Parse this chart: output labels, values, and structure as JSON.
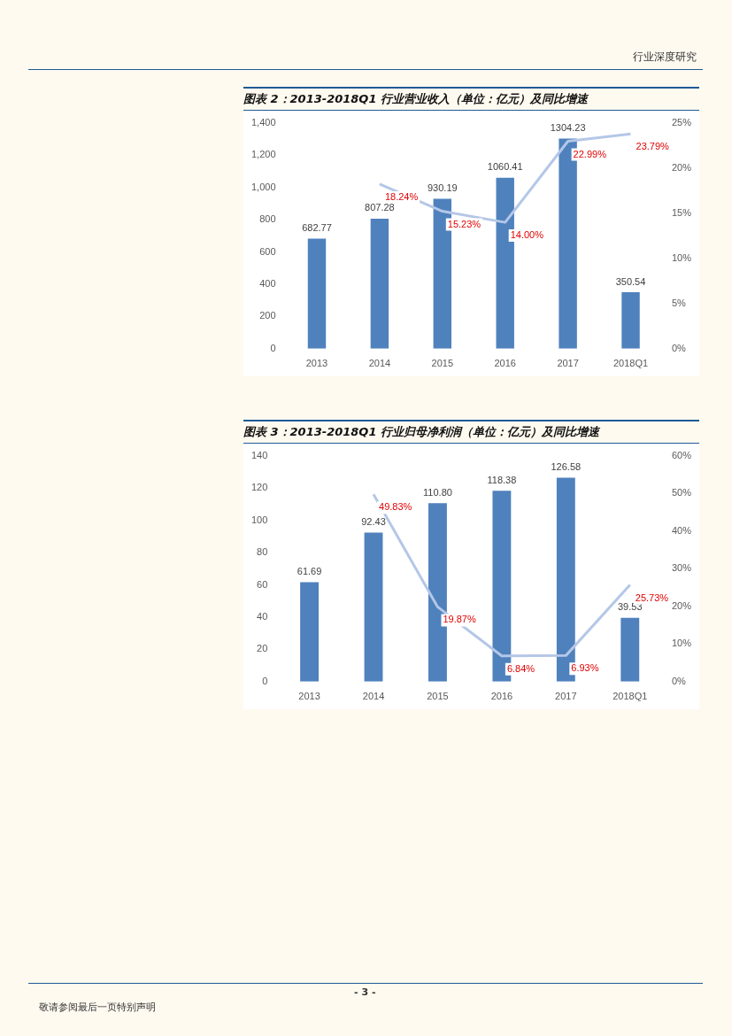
{
  "chart_data": [
    {
      "type": "bar",
      "title": "图表 2：2013-2018Q1 行业营业收入（单位：亿元）及同比增速",
      "annotations": [
        "行业深度研究"
      ],
      "categories": [
        "2013",
        "2014",
        "2015",
        "2016",
        "2017",
        "2018Q1"
      ],
      "series": [
        {
          "color": "#4f81bd",
          "values": [
            682.77,
            807.28,
            930.19,
            1060.41,
            1304.23,
            350.54
          ],
          "value_labels": [
            "682.77",
            "807.28",
            "930.19",
            "1060.41",
            "1304.23",
            "350.54"
          ]
        },
        {
          "type": "line",
          "axis": "y2",
          "color": "#b4c7e7",
          "values": [
            null,
            18.24,
            15.23,
            14.0,
            22.99,
            23.79
          ],
          "value_labels": [
            null,
            "18.24%",
            "15.23%",
            "14.00%",
            "22.99%",
            "23.79%"
          ]
        }
      ],
      "ylim": [
        0,
        1400
      ],
      "yticks": [
        0,
        200,
        400,
        600,
        800,
        {
          "value": 1000,
          "label": "1,000"
        },
        {
          "value": 1200,
          "label": "1,200"
        },
        {
          "value": 1400,
          "label": "1,400"
        }
      ],
      "y2lim": [
        0,
        25
      ],
      "y2ticks": [
        {
          "value": 0,
          "label": "0%"
        },
        {
          "value": 5,
          "label": "5%"
        },
        {
          "value": 10,
          "label": "10%"
        },
        {
          "value": 15,
          "label": "15%"
        },
        {
          "value": 20,
          "label": "20%"
        },
        {
          "value": 25,
          "label": "25%"
        }
      ],
      "grid": false,
      "legend": false,
      "marker": "none"
    },
    {
      "type": "bar",
      "title": "图表 3：2013-2018Q1 行业归母净利润（单位：亿元）及同比增速",
      "annotations": [
        "- 3 -",
        "敬请参阅最后一页特别声明"
      ],
      "categories": [
        "2013",
        "2014",
        "2015",
        "2016",
        "2017",
        "2018Q1"
      ],
      "series": [
        {
          "color": "#4f81bd",
          "values": [
            61.69,
            92.43,
            110.8,
            118.38,
            126.58,
            39.53
          ],
          "value_labels": [
            "61.69",
            "92.43",
            "110.80",
            "118.38",
            "126.58",
            "39.53"
          ]
        },
        {
          "type": "line",
          "axis": "y2",
          "color": "#b4c7e7",
          "values": [
            null,
            49.83,
            19.87,
            6.84,
            6.93,
            25.73
          ],
          "value_labels": [
            null,
            "49.83%",
            "19.87%",
            "6.84%",
            "6.93%",
            "25.73%"
          ]
        }
      ],
      "ylim": [
        0,
        140
      ],
      "yticks": [
        0,
        20,
        40,
        60,
        80,
        100,
        120,
        140
      ],
      "y2lim": [
        0,
        60
      ],
      "y2ticks": [
        {
          "value": 0,
          "label": "0%"
        },
        {
          "value": 10,
          "label": "10%"
        },
        {
          "value": 20,
          "label": "20%"
        },
        {
          "value": 30,
          "label": "30%"
        },
        {
          "value": 40,
          "label": "40%"
        },
        {
          "value": 50,
          "label": "50%"
        },
        {
          "value": 60,
          "label": "60%"
        }
      ],
      "grid": false,
      "legend": false,
      "marker": "none"
    }
  ]
}
